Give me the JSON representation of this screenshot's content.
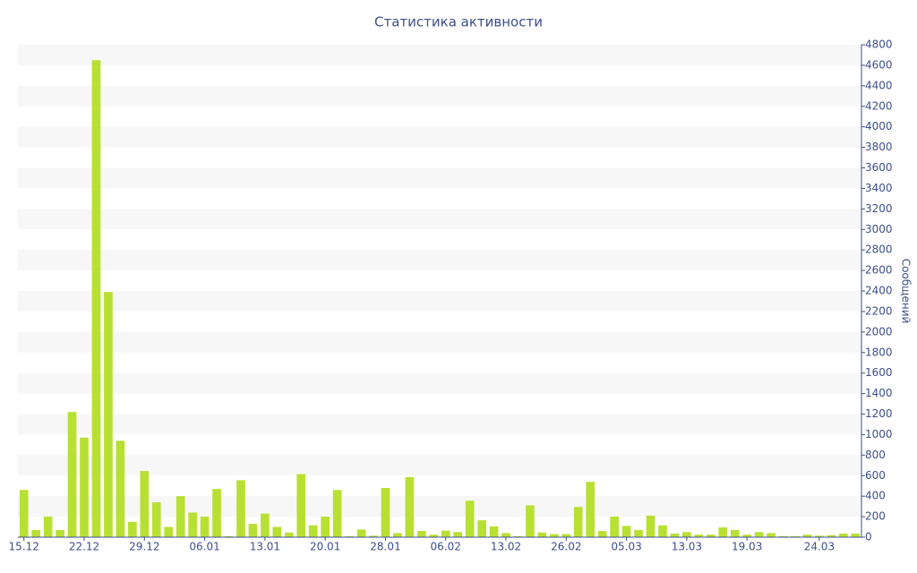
{
  "chart_data": {
    "type": "bar",
    "title": "Статистика активности",
    "y_label": "Сообщений",
    "categories": [
      "15.12",
      null,
      null,
      null,
      null,
      "22.12",
      null,
      null,
      null,
      null,
      "29.12",
      null,
      null,
      null,
      null,
      "06.01",
      null,
      null,
      null,
      null,
      "13.01",
      null,
      null,
      null,
      null,
      "20.01",
      null,
      null,
      null,
      null,
      "28.01",
      null,
      null,
      null,
      null,
      "06.02",
      null,
      null,
      null,
      null,
      "13.02",
      null,
      null,
      null,
      null,
      "26.02",
      null,
      null,
      null,
      null,
      "05.03",
      null,
      null,
      null,
      null,
      "13.03",
      null,
      null,
      null,
      null,
      "19.03",
      null,
      null,
      null,
      null,
      null,
      "24.03",
      null,
      null,
      null
    ],
    "values": [
      460,
      70,
      200,
      70,
      1220,
      970,
      4650,
      2390,
      940,
      150,
      645,
      340,
      100,
      400,
      240,
      200,
      470,
      10,
      555,
      130,
      230,
      100,
      45,
      615,
      115,
      200,
      460,
      10,
      75,
      15,
      480,
      40,
      585,
      60,
      25,
      65,
      50,
      355,
      165,
      105,
      40,
      10,
      310,
      45,
      30,
      30,
      295,
      540,
      60,
      200,
      110,
      70,
      210,
      115,
      35,
      50,
      25,
      25,
      95,
      70,
      25,
      50,
      40,
      10,
      10,
      25,
      15,
      20,
      35,
      35
    ],
    "color": "#b8e033",
    "ylim": [
      0,
      4800
    ],
    "yticks": [
      0,
      200,
      400,
      600,
      800,
      1000,
      1200,
      1400,
      1600,
      1800,
      2000,
      2200,
      2400,
      2600,
      2800,
      3000,
      3200,
      3400,
      3600,
      3800,
      4000,
      4200,
      4400,
      4600,
      4800
    ],
    "grid": "bands",
    "y_axis_side": "right"
  }
}
